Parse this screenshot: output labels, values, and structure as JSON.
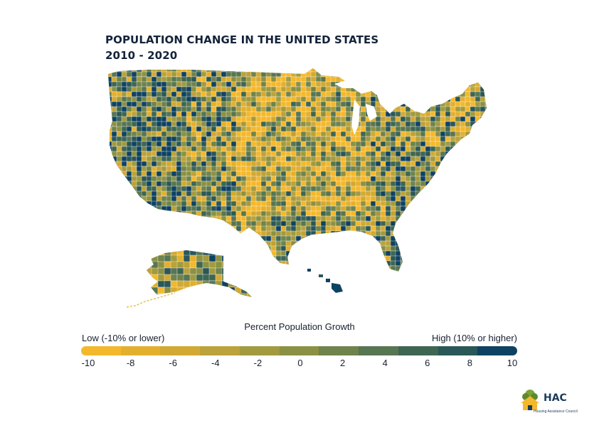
{
  "title": {
    "line1": "POPULATION CHANGE IN THE UNITED STATES",
    "line2": "2010 - 2020"
  },
  "legend": {
    "title": "Percent Population Growth",
    "low_label": "Low (-10% or lower)",
    "high_label": "High (10% or higher)",
    "ticks": [
      "-10",
      "-8",
      "-6",
      "-4",
      "-2",
      "0",
      "2",
      "4",
      "6",
      "8",
      "10"
    ],
    "colors": [
      "#f4b82c",
      "#e3b02e",
      "#d2a933",
      "#bba23a",
      "#a29a3f",
      "#8b9144",
      "#6f834c",
      "#587651",
      "#3e6653",
      "#2a5758",
      "#0f4262"
    ]
  },
  "map_colors": {
    "low": "#f4b82c",
    "high": "#0f4262",
    "border": "#ffffff"
  },
  "logo": {
    "name": "HAC",
    "subtitle": "Housing Assistance Council"
  }
}
